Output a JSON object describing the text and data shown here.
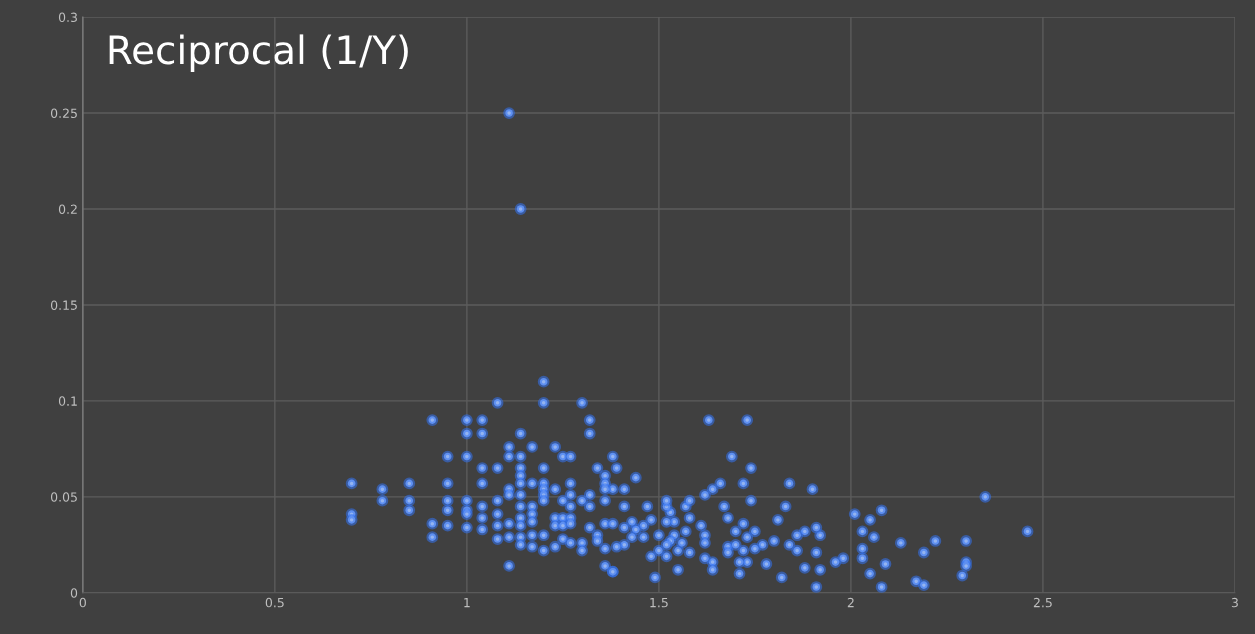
{
  "chart_data": {
    "type": "scatter",
    "title": "Reciprocal (1/Y)",
    "xlim": [
      0,
      3
    ],
    "ylim": [
      0,
      0.3
    ],
    "xticks": [
      0,
      0.5,
      1,
      1.5,
      2,
      2.5,
      3
    ],
    "yticks": [
      0,
      0.05,
      0.1,
      0.15,
      0.2,
      0.25,
      0.3
    ],
    "grid": true,
    "marker": "circle",
    "series": [
      {
        "color": "#94b4f0",
        "x": [
          1.11,
          1.14,
          2.35,
          2.46,
          2.13,
          2.22,
          2.19,
          2.3,
          2.3,
          2.3,
          2.29,
          2.17,
          2.19,
          1.63,
          1.73,
          1.69,
          1.74,
          1.84,
          1.9,
          1.72,
          1.66,
          1.64,
          1.62,
          1.74,
          1.83,
          2.01,
          2.08,
          2.05,
          2.03,
          2.06,
          2.03,
          2.03,
          2.09,
          2.05,
          2.08,
          1.91,
          1.98,
          1.96,
          1.92,
          1.91,
          1.92,
          1.91,
          1.88,
          1.86,
          1.84,
          1.86,
          1.88,
          1.81,
          1.8,
          1.78,
          1.82,
          1.77,
          1.75,
          1.72,
          1.7,
          1.68,
          1.68,
          1.7,
          1.73,
          1.75,
          1.72,
          1.73,
          1.71,
          1.71,
          1.67,
          1.68,
          1.64,
          1.64,
          1.62,
          1.62,
          1.62,
          1.61,
          1.58,
          1.57,
          1.58,
          1.55,
          1.58,
          1.55,
          1.56,
          1.57,
          1.54,
          1.54,
          1.53,
          1.52,
          1.52,
          1.52,
          1.53,
          1.52,
          1.52,
          1.5,
          1.5,
          1.49,
          1.48,
          1.47,
          1.48,
          1.46,
          1.46,
          1.44,
          1.44,
          1.43,
          1.43,
          1.41,
          1.41,
          1.41,
          1.41,
          1.39,
          1.39,
          1.38,
          1.38,
          1.38,
          1.08,
          1.2,
          1.3,
          1.2,
          0.91,
          1.0,
          1.04,
          1.0,
          1.04,
          1.32,
          1.32,
          1.14,
          1.11,
          1.17,
          1.23,
          0.95,
          1.0,
          1.11,
          1.14,
          1.25,
          1.27,
          1.04,
          1.08,
          1.14,
          1.2,
          1.34,
          0.7,
          0.78,
          0.85,
          0.95,
          1.04,
          1.14,
          1.14,
          1.17,
          1.2,
          1.27,
          1.36,
          1.36,
          0.78,
          0.85,
          0.85,
          0.7,
          0.7,
          0.95,
          0.95,
          1.0,
          1.0,
          1.0,
          0.91,
          0.91,
          0.95,
          1.0,
          1.04,
          1.04,
          1.04,
          1.08,
          1.08,
          1.08,
          1.08,
          1.11,
          1.11,
          1.11,
          1.11,
          1.11,
          1.14,
          1.14,
          1.14,
          1.14,
          1.14,
          1.14,
          1.17,
          1.17,
          1.17,
          1.17,
          1.17,
          1.2,
          1.2,
          1.2,
          1.2,
          1.2,
          1.23,
          1.23,
          1.23,
          1.23,
          1.25,
          1.25,
          1.25,
          1.25,
          1.27,
          1.27,
          1.27,
          1.27,
          1.27,
          1.3,
          1.3,
          1.3,
          1.32,
          1.32,
          1.32,
          1.34,
          1.34,
          1.36,
          1.36,
          1.36,
          1.36,
          1.36,
          1.38,
          1.38
        ],
        "values": [
          0.25,
          0.2,
          0.05,
          0.032,
          0.026,
          0.027,
          0.021,
          0.027,
          0.016,
          0.014,
          0.009,
          0.006,
          0.004,
          0.09,
          0.09,
          0.071,
          0.065,
          0.057,
          0.054,
          0.057,
          0.057,
          0.054,
          0.051,
          0.048,
          0.045,
          0.041,
          0.043,
          0.038,
          0.032,
          0.029,
          0.023,
          0.018,
          0.015,
          0.01,
          0.003,
          0.003,
          0.018,
          0.016,
          0.012,
          0.021,
          0.03,
          0.034,
          0.032,
          0.03,
          0.025,
          0.022,
          0.013,
          0.038,
          0.027,
          0.015,
          0.008,
          0.025,
          0.032,
          0.036,
          0.032,
          0.024,
          0.021,
          0.025,
          0.029,
          0.023,
          0.022,
          0.016,
          0.016,
          0.01,
          0.045,
          0.039,
          0.016,
          0.012,
          0.018,
          0.03,
          0.026,
          0.035,
          0.039,
          0.045,
          0.048,
          0.012,
          0.021,
          0.022,
          0.026,
          0.032,
          0.03,
          0.037,
          0.027,
          0.025,
          0.019,
          0.037,
          0.042,
          0.045,
          0.048,
          0.03,
          0.022,
          0.008,
          0.019,
          0.045,
          0.038,
          0.029,
          0.035,
          0.06,
          0.033,
          0.029,
          0.037,
          0.045,
          0.034,
          0.025,
          0.054,
          0.065,
          0.024,
          0.071,
          0.011,
          0.054,
          0.099,
          0.11,
          0.099,
          0.099,
          0.09,
          0.09,
          0.09,
          0.083,
          0.083,
          0.09,
          0.083,
          0.083,
          0.076,
          0.076,
          0.076,
          0.071,
          0.071,
          0.071,
          0.071,
          0.071,
          0.071,
          0.065,
          0.065,
          0.065,
          0.065,
          0.065,
          0.057,
          0.054,
          0.057,
          0.057,
          0.057,
          0.061,
          0.057,
          0.057,
          0.057,
          0.057,
          0.061,
          0.057,
          0.048,
          0.048,
          0.043,
          0.041,
          0.038,
          0.048,
          0.043,
          0.048,
          0.043,
          0.041,
          0.036,
          0.029,
          0.035,
          0.034,
          0.045,
          0.039,
          0.033,
          0.048,
          0.041,
          0.035,
          0.028,
          0.054,
          0.051,
          0.036,
          0.029,
          0.014,
          0.051,
          0.045,
          0.039,
          0.035,
          0.029,
          0.025,
          0.045,
          0.041,
          0.037,
          0.03,
          0.024,
          0.054,
          0.051,
          0.048,
          0.03,
          0.022,
          0.054,
          0.039,
          0.035,
          0.024,
          0.048,
          0.039,
          0.035,
          0.028,
          0.051,
          0.045,
          0.039,
          0.036,
          0.026,
          0.048,
          0.026,
          0.022,
          0.051,
          0.045,
          0.034,
          0.03,
          0.027,
          0.054,
          0.048,
          0.036,
          0.023,
          0.014,
          0.011,
          0.036
        ]
      }
    ]
  }
}
